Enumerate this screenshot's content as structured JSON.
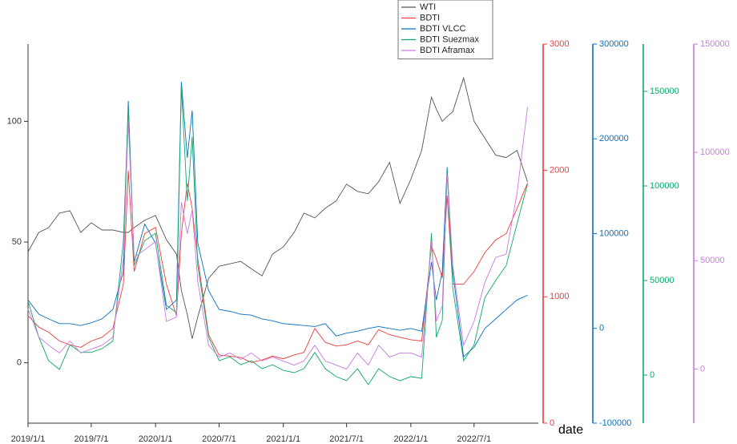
{
  "chart_data": {
    "type": "line",
    "x_label": "date",
    "x": [
      "2019/1/1",
      "2019/2/1",
      "2019/3/1",
      "2019/4/1",
      "2019/5/1",
      "2019/6/1",
      "2019/7/1",
      "2019/8/1",
      "2019/9/1",
      "2019/10/1",
      "2019/10/15",
      "2019/11/1",
      "2019/12/1",
      "2020/1/1",
      "2020/2/1",
      "2020/3/1",
      "2020/3/15",
      "2020/4/1",
      "2020/4/15",
      "2020/5/1",
      "2020/6/1",
      "2020/7/1",
      "2020/8/1",
      "2020/9/1",
      "2020/10/1",
      "2020/11/1",
      "2020/12/1",
      "2021/1/1",
      "2021/2/1",
      "2021/3/1",
      "2021/4/1",
      "2021/5/1",
      "2021/6/1",
      "2021/7/1",
      "2021/8/1",
      "2021/9/1",
      "2021/10/1",
      "2021/11/1",
      "2021/12/1",
      "2022/1/1",
      "2022/2/1",
      "2022/3/1",
      "2022/3/15",
      "2022/4/1",
      "2022/4/15",
      "2022/5/1",
      "2022/6/1",
      "2022/7/1",
      "2022/8/1",
      "2022/9/1",
      "2022/10/1",
      "2022/11/1",
      "2022/12/1"
    ],
    "xlim": [
      "2019/1/1",
      "2023/1/1"
    ],
    "xticks": [
      "2019/1/1",
      "2019/7/1",
      "2020/1/1",
      "2020/7/1",
      "2021/1/1",
      "2021/7/1",
      "2022/1/1",
      "2022/7/1"
    ],
    "ylim": [
      -25,
      132
    ],
    "yticks": [
      0,
      50,
      100
    ],
    "y2lim": [
      0,
      3000
    ],
    "y2ticks": [
      0,
      1000,
      2000,
      3000
    ],
    "y3lim": [
      -100000,
      300000
    ],
    "y3ticks": [
      -100000,
      0,
      100000,
      200000,
      300000
    ],
    "y4lim": [
      -25400,
      175000
    ],
    "y4ticks": [
      0,
      50000,
      100000,
      150000
    ],
    "y5lim": [
      -25000,
      150000
    ],
    "y5ticks": [
      0,
      50000,
      100000,
      150000
    ],
    "legend": "top",
    "series": [
      {
        "name": "WTI",
        "color": "#555555",
        "axis": "y",
        "values": [
          46,
          54,
          56,
          62,
          63,
          54,
          58,
          55,
          55,
          54,
          54,
          56,
          59,
          61,
          51,
          45,
          30,
          20,
          10,
          19,
          35,
          40,
          41,
          42,
          39,
          36,
          45,
          48,
          54,
          62,
          60,
          64,
          67,
          74,
          71,
          70,
          75,
          83,
          66,
          76,
          88,
          110,
          105,
          100,
          102,
          104,
          118,
          100,
          93,
          86,
          85,
          88,
          75
        ]
      },
      {
        "name": "BDTI",
        "color": "#ec3c3c",
        "axis": "y2",
        "values": [
          850,
          760,
          720,
          650,
          620,
          600,
          650,
          680,
          750,
          1100,
          2000,
          1200,
          1500,
          1550,
          1100,
          850,
          1500,
          1900,
          1700,
          1300,
          700,
          540,
          530,
          520,
          480,
          500,
          530,
          510,
          540,
          560,
          750,
          640,
          610,
          620,
          650,
          620,
          740,
          700,
          680,
          660,
          650,
          1400,
          1300,
          1150,
          1800,
          1100,
          1100,
          1200,
          1350,
          1450,
          1500,
          1700,
          1900
        ]
      },
      {
        "name": "BDTI VLCC",
        "color": "#0a70c2",
        "axis": "y3",
        "values": [
          30000,
          15000,
          10000,
          5000,
          5000,
          3000,
          6000,
          10000,
          20000,
          60000,
          240000,
          70000,
          110000,
          90000,
          20000,
          30000,
          260000,
          180000,
          230000,
          90000,
          40000,
          20000,
          18000,
          15000,
          14000,
          10000,
          8000,
          5000,
          4000,
          3000,
          2000,
          5000,
          -8000,
          -5000,
          -3000,
          0,
          2000,
          0,
          -2000,
          0,
          -3000,
          70000,
          30000,
          60000,
          170000,
          60000,
          -30000,
          -20000,
          0,
          10000,
          20000,
          30000,
          35000
        ]
      },
      {
        "name": "BDTI Suezmax",
        "color": "#0fa868",
        "axis": "y4",
        "values": [
          39000,
          20000,
          7600,
          3000,
          16000,
          12000,
          12000,
          14000,
          18000,
          71000,
          141000,
          58000,
          71000,
          75000,
          37000,
          33000,
          152000,
          92000,
          126000,
          58000,
          20000,
          7600,
          9700,
          5500,
          7600,
          3400,
          5500,
          2500,
          1300,
          3400,
          12000,
          3400,
          -800,
          -3000,
          3400,
          -5000,
          3400,
          -800,
          -3000,
          -800,
          -1700,
          75000,
          20000,
          29000,
          108000,
          46000,
          7600,
          16000,
          41000,
          50000,
          58000,
          80000,
          101000
        ]
      },
      {
        "name": "BDTI Aframax",
        "color": "#c97be0",
        "axis": "y5",
        "values": [
          27600,
          14700,
          11000,
          7400,
          12900,
          7400,
          9200,
          11000,
          14700,
          51500,
          114000,
          51500,
          55000,
          58800,
          22000,
          24000,
          77000,
          62500,
          73500,
          40400,
          11000,
          5500,
          7400,
          4400,
          7400,
          3700,
          5500,
          3700,
          1800,
          3700,
          11000,
          3700,
          1800,
          0,
          7400,
          1800,
          11000,
          5500,
          7400,
          7400,
          5500,
          58800,
          22000,
          29000,
          90000,
          47800,
          11000,
          22000,
          40000,
          51500,
          53000,
          81000,
          121000
        ]
      }
    ]
  }
}
